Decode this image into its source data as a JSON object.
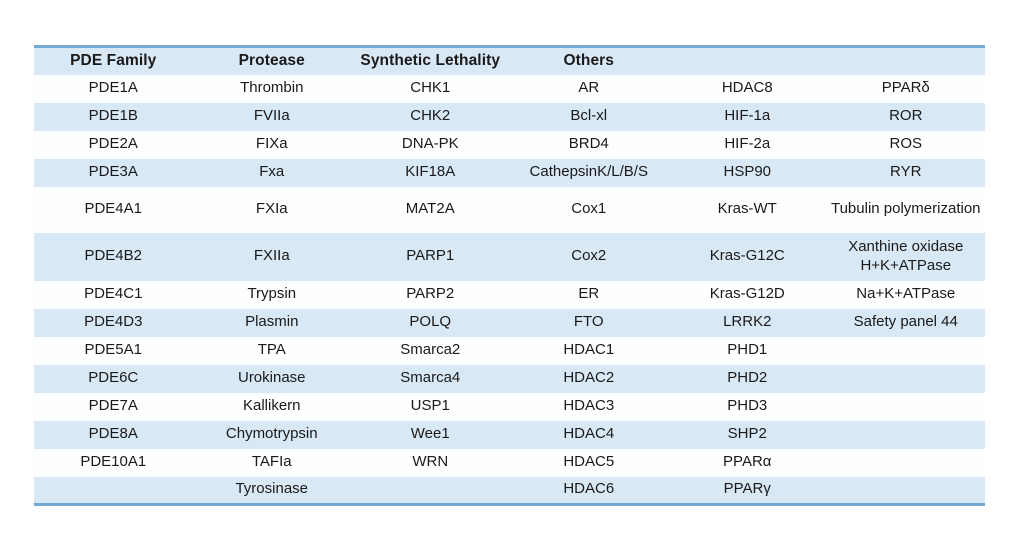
{
  "table": {
    "headers": [
      "PDE Family",
      "Protease",
      "Synthetic Lethality",
      "Others",
      "",
      ""
    ],
    "rows": [
      [
        "PDE1A",
        "Thrombin",
        "CHK1",
        "AR",
        "HDAC8",
        "PPARδ"
      ],
      [
        "PDE1B",
        "FVIIa",
        "CHK2",
        "Bcl-xl",
        "HIF-1a",
        "ROR"
      ],
      [
        "PDE2A",
        "FIXa",
        "DNA-PK",
        "BRD4",
        "HIF-2a",
        "ROS"
      ],
      [
        "PDE3A",
        "Fxa",
        "KIF18A",
        "CathepsinK/L/B/S",
        "HSP90",
        "RYR"
      ],
      [
        "PDE4A1",
        "FXIa",
        "MAT2A",
        "Cox1",
        "Kras-WT",
        "Tubulin polymerization"
      ],
      [
        "PDE4B2",
        "FXIIa",
        "PARP1",
        "Cox2",
        "Kras-G12C",
        "Xanthine oxidase\nH+K+ATPase"
      ],
      [
        "PDE4C1",
        "Trypsin",
        "PARP2",
        "ER",
        "Kras-G12D",
        "Na+K+ATPase"
      ],
      [
        "PDE4D3",
        "Plasmin",
        "POLQ",
        "FTO",
        "LRRK2",
        "Safety panel 44"
      ],
      [
        "PDE5A1",
        "TPA",
        "Smarca2",
        "HDAC1",
        "PHD1",
        ""
      ],
      [
        "PDE6C",
        "Urokinase",
        "Smarca4",
        "HDAC2",
        "PHD2",
        ""
      ],
      [
        "PDE7A",
        "Kallikern",
        "USP1",
        "HDAC3",
        "PHD3",
        ""
      ],
      [
        "PDE8A",
        "Chymotrypsin",
        "Wee1",
        "HDAC4",
        "SHP2",
        ""
      ],
      [
        "PDE10A1",
        "TAFIa",
        "WRN",
        "HDAC5",
        "PPARα",
        ""
      ],
      [
        "",
        "Tyrosinase",
        "",
        "HDAC6",
        "PPARγ",
        ""
      ]
    ],
    "colors": {
      "header_bg": "#d9e8f5",
      "row_alt_bg": "#d9e8f5",
      "row_bg": "#fdfefe",
      "border": "#74a9d3",
      "text": "#1a1a1a"
    }
  }
}
